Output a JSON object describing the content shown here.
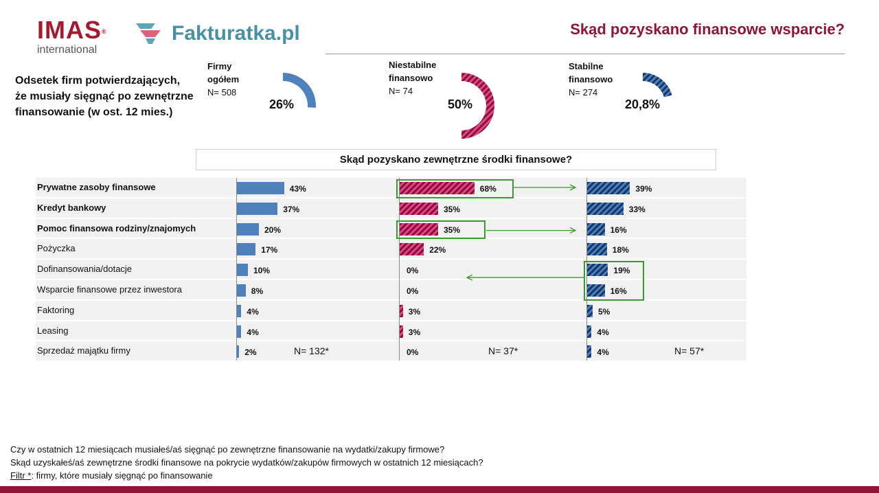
{
  "header": {
    "logo_imas": "IMAS",
    "logo_imas_reg": "®",
    "logo_imas_sub": "international",
    "logo_fakturatka": "Fakturatka.pl",
    "title": "Skąd pozyskano finansowe wsparcie?"
  },
  "intro": {
    "line1": "Odsetek firm potwierdzających,",
    "line2": "że musiały sięgnąć po zewnętrzne",
    "line3": "finansowanie (w ost. 12 mies.)"
  },
  "groups": [
    {
      "label_line1": "Firmy",
      "label_line2": "ogółem",
      "n_label": "N= 508",
      "pct_label": "26%",
      "value": 0.26,
      "color": "#4f81bd"
    },
    {
      "label_line1": "Niestabilne",
      "label_line2": "finansowo",
      "n_label": "N= 74",
      "pct_label": "50%",
      "value": 0.5,
      "color": "#c2185b"
    },
    {
      "label_line1": "Stabilne",
      "label_line2": "finansowo",
      "n_label": "N= 274",
      "pct_label": "20,8%",
      "value": 0.208,
      "color": "#1f4e8c"
    }
  ],
  "section_title": "Skąd pozyskano zewnętrzne środki finansowe?",
  "chart_data": {
    "type": "bar",
    "orientation": "horizontal",
    "categories": [
      "Prywatne zasoby finansowe",
      "Kredyt bankowy",
      "Pomoc finansowa rodziny/znajomych",
      "Pożyczka",
      "Dofinansowania/dotacje",
      "Wsparcie finansowe przez inwestora",
      "Faktoring",
      "Leasing",
      "Sprzedaż majątku firmy"
    ],
    "bold_categories": [
      0,
      1,
      2
    ],
    "series": [
      {
        "values": [
          43,
          37,
          20,
          17,
          10,
          8,
          4,
          4,
          2
        ],
        "labels": [
          "43%",
          "37%",
          "20%",
          "17%",
          "10%",
          "8%",
          "4%",
          "4%",
          "2%"
        ],
        "n_label": "N= 132*",
        "color": "#4f81bd",
        "pattern": "solid"
      },
      {
        "values": [
          68,
          35,
          35,
          22,
          0,
          0,
          3,
          3,
          0
        ],
        "labels": [
          "68%",
          "35%",
          "35%",
          "22%",
          "0%",
          "0%",
          "3%",
          "3%",
          "0%"
        ],
        "n_label": "N= 37*",
        "color": "#c2185b",
        "pattern": "hatched"
      },
      {
        "values": [
          39,
          33,
          16,
          18,
          19,
          16,
          5,
          4,
          4
        ],
        "labels": [
          "39%",
          "33%",
          "16%",
          "18%",
          "19%",
          "16%",
          "5%",
          "4%",
          "4%"
        ],
        "n_label": "N= 57*",
        "color": "#1f4e8c",
        "pattern": "hatched"
      }
    ],
    "highlight_color": "#3a9a2e",
    "xlim": [
      0,
      100
    ]
  },
  "footer": {
    "q1": "Czy w ostatnich 12 miesiącach musiałeś/aś sięgnąć po zewnętrzne finansowanie na wydatki/zakupy firmowe?",
    "q2": "Skąd uzyskałeś/aś zewnętrzne środki finansowe na pokrycie wydatków/zakupów firmowych w ostatnich 12 miesiącach?",
    "filter_label": "Filtr *",
    "filter_text": ": firmy, które musiały sięgnąć po finansowanie"
  }
}
